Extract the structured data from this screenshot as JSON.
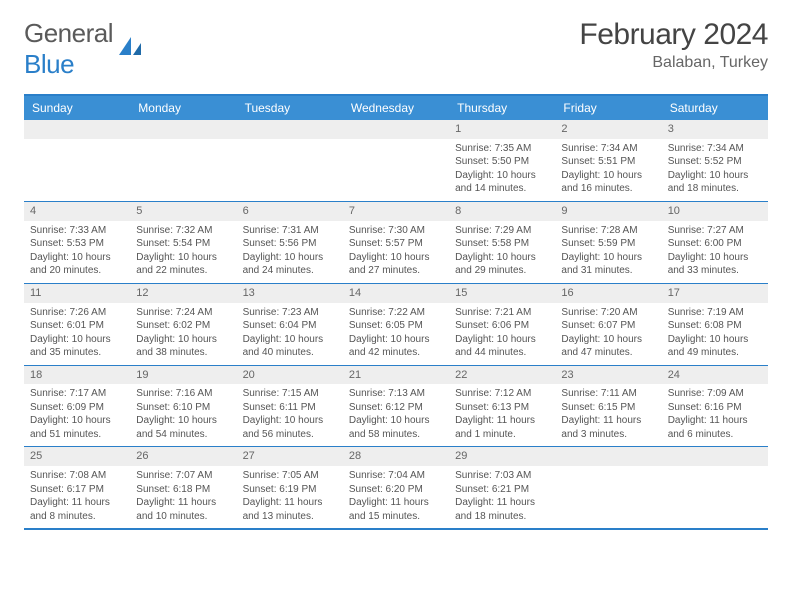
{
  "logo": {
    "textA": "General",
    "textB": "Blue"
  },
  "title": "February 2024",
  "location": "Balaban, Turkey",
  "colors": {
    "brand": "#2a7fc9",
    "header_bg": "#3a8fd4",
    "day_bar": "#eeeeee",
    "text": "#555555"
  },
  "weekdays": [
    "Sunday",
    "Monday",
    "Tuesday",
    "Wednesday",
    "Thursday",
    "Friday",
    "Saturday"
  ],
  "weeks": [
    [
      null,
      null,
      null,
      null,
      {
        "n": "1",
        "sr": "Sunrise: 7:35 AM",
        "ss": "Sunset: 5:50 PM",
        "dl": "Daylight: 10 hours and 14 minutes."
      },
      {
        "n": "2",
        "sr": "Sunrise: 7:34 AM",
        "ss": "Sunset: 5:51 PM",
        "dl": "Daylight: 10 hours and 16 minutes."
      },
      {
        "n": "3",
        "sr": "Sunrise: 7:34 AM",
        "ss": "Sunset: 5:52 PM",
        "dl": "Daylight: 10 hours and 18 minutes."
      }
    ],
    [
      {
        "n": "4",
        "sr": "Sunrise: 7:33 AM",
        "ss": "Sunset: 5:53 PM",
        "dl": "Daylight: 10 hours and 20 minutes."
      },
      {
        "n": "5",
        "sr": "Sunrise: 7:32 AM",
        "ss": "Sunset: 5:54 PM",
        "dl": "Daylight: 10 hours and 22 minutes."
      },
      {
        "n": "6",
        "sr": "Sunrise: 7:31 AM",
        "ss": "Sunset: 5:56 PM",
        "dl": "Daylight: 10 hours and 24 minutes."
      },
      {
        "n": "7",
        "sr": "Sunrise: 7:30 AM",
        "ss": "Sunset: 5:57 PM",
        "dl": "Daylight: 10 hours and 27 minutes."
      },
      {
        "n": "8",
        "sr": "Sunrise: 7:29 AM",
        "ss": "Sunset: 5:58 PM",
        "dl": "Daylight: 10 hours and 29 minutes."
      },
      {
        "n": "9",
        "sr": "Sunrise: 7:28 AM",
        "ss": "Sunset: 5:59 PM",
        "dl": "Daylight: 10 hours and 31 minutes."
      },
      {
        "n": "10",
        "sr": "Sunrise: 7:27 AM",
        "ss": "Sunset: 6:00 PM",
        "dl": "Daylight: 10 hours and 33 minutes."
      }
    ],
    [
      {
        "n": "11",
        "sr": "Sunrise: 7:26 AM",
        "ss": "Sunset: 6:01 PM",
        "dl": "Daylight: 10 hours and 35 minutes."
      },
      {
        "n": "12",
        "sr": "Sunrise: 7:24 AM",
        "ss": "Sunset: 6:02 PM",
        "dl": "Daylight: 10 hours and 38 minutes."
      },
      {
        "n": "13",
        "sr": "Sunrise: 7:23 AM",
        "ss": "Sunset: 6:04 PM",
        "dl": "Daylight: 10 hours and 40 minutes."
      },
      {
        "n": "14",
        "sr": "Sunrise: 7:22 AM",
        "ss": "Sunset: 6:05 PM",
        "dl": "Daylight: 10 hours and 42 minutes."
      },
      {
        "n": "15",
        "sr": "Sunrise: 7:21 AM",
        "ss": "Sunset: 6:06 PM",
        "dl": "Daylight: 10 hours and 44 minutes."
      },
      {
        "n": "16",
        "sr": "Sunrise: 7:20 AM",
        "ss": "Sunset: 6:07 PM",
        "dl": "Daylight: 10 hours and 47 minutes."
      },
      {
        "n": "17",
        "sr": "Sunrise: 7:19 AM",
        "ss": "Sunset: 6:08 PM",
        "dl": "Daylight: 10 hours and 49 minutes."
      }
    ],
    [
      {
        "n": "18",
        "sr": "Sunrise: 7:17 AM",
        "ss": "Sunset: 6:09 PM",
        "dl": "Daylight: 10 hours and 51 minutes."
      },
      {
        "n": "19",
        "sr": "Sunrise: 7:16 AM",
        "ss": "Sunset: 6:10 PM",
        "dl": "Daylight: 10 hours and 54 minutes."
      },
      {
        "n": "20",
        "sr": "Sunrise: 7:15 AM",
        "ss": "Sunset: 6:11 PM",
        "dl": "Daylight: 10 hours and 56 minutes."
      },
      {
        "n": "21",
        "sr": "Sunrise: 7:13 AM",
        "ss": "Sunset: 6:12 PM",
        "dl": "Daylight: 10 hours and 58 minutes."
      },
      {
        "n": "22",
        "sr": "Sunrise: 7:12 AM",
        "ss": "Sunset: 6:13 PM",
        "dl": "Daylight: 11 hours and 1 minute."
      },
      {
        "n": "23",
        "sr": "Sunrise: 7:11 AM",
        "ss": "Sunset: 6:15 PM",
        "dl": "Daylight: 11 hours and 3 minutes."
      },
      {
        "n": "24",
        "sr": "Sunrise: 7:09 AM",
        "ss": "Sunset: 6:16 PM",
        "dl": "Daylight: 11 hours and 6 minutes."
      }
    ],
    [
      {
        "n": "25",
        "sr": "Sunrise: 7:08 AM",
        "ss": "Sunset: 6:17 PM",
        "dl": "Daylight: 11 hours and 8 minutes."
      },
      {
        "n": "26",
        "sr": "Sunrise: 7:07 AM",
        "ss": "Sunset: 6:18 PM",
        "dl": "Daylight: 11 hours and 10 minutes."
      },
      {
        "n": "27",
        "sr": "Sunrise: 7:05 AM",
        "ss": "Sunset: 6:19 PM",
        "dl": "Daylight: 11 hours and 13 minutes."
      },
      {
        "n": "28",
        "sr": "Sunrise: 7:04 AM",
        "ss": "Sunset: 6:20 PM",
        "dl": "Daylight: 11 hours and 15 minutes."
      },
      {
        "n": "29",
        "sr": "Sunrise: 7:03 AM",
        "ss": "Sunset: 6:21 PM",
        "dl": "Daylight: 11 hours and 18 minutes."
      },
      null,
      null
    ]
  ]
}
